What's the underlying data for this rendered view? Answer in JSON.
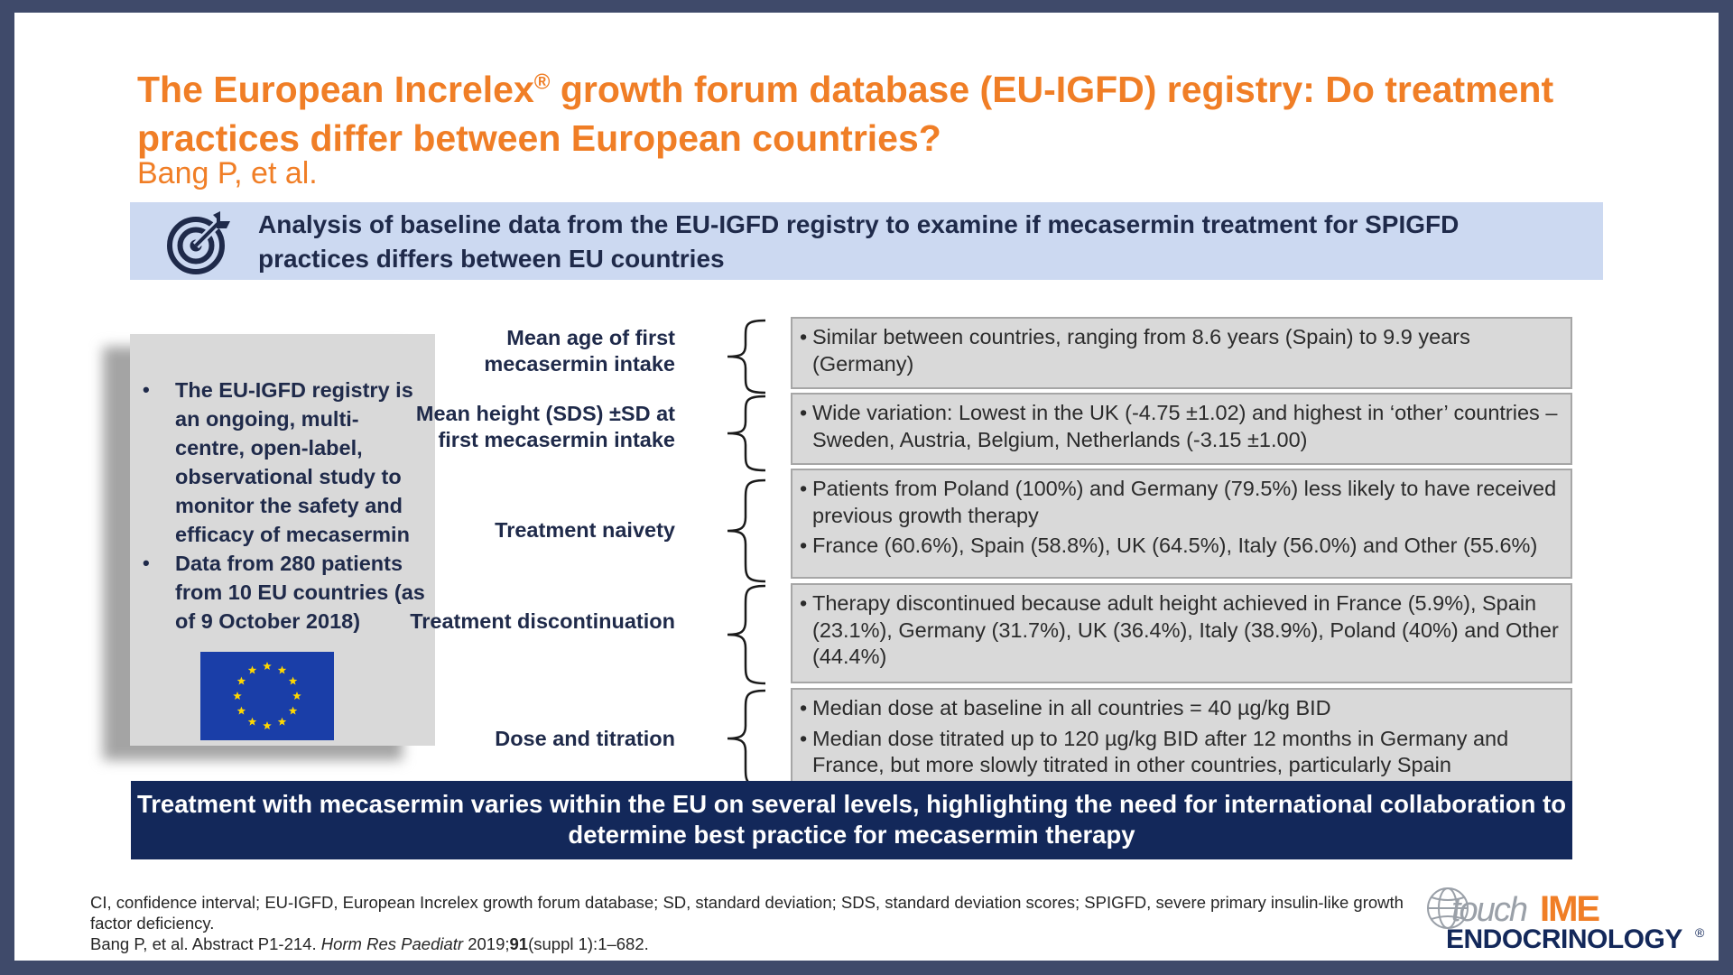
{
  "title": {
    "line_part1": "The European Increlex",
    "registered": "®",
    "line_part2": " growth forum database (EU-IGFD) registry: Do treatment practices differ between European countries?"
  },
  "authors": "Bang P, et al.",
  "aim": {
    "icon": "target-icon",
    "text": "Analysis of baseline data from the EU-IGFD registry to examine if mecasermin treatment for SPIGFD practices differs between EU countries"
  },
  "left_box": {
    "bullets": [
      "The EU-IGFD registry is an ongoing, multi-centre, open-label, observational study to monitor the safety and efficacy of mecasermin",
      "Data from 280 patients from 10 EU countries (as of 9 October 2018)"
    ],
    "flag": "eu-flag-icon",
    "bullet_char": "•"
  },
  "rows": [
    {
      "label": "Mean age of first mecasermin intake",
      "bullets": [
        "Similar between countries, ranging from 8.6 years (Spain) to 9.9 years (Germany)"
      ]
    },
    {
      "label": "Mean height (SDS) ±SD at first mecasermin intake",
      "bullets": [
        "Wide variation: Lowest in the UK (-4.75 ±1.02) and highest in ‘other’ countries – Sweden, Austria, Belgium, Netherlands (-3.15 ±1.00)"
      ]
    },
    {
      "label": "Treatment naivety",
      "bullets": [
        "Patients from Poland (100%) and Germany (79.5%) less likely to have received previous growth therapy",
        "France (60.6%), Spain (58.8%), UK (64.5%), Italy (56.0%) and Other (55.6%)"
      ]
    },
    {
      "label": "Treatment discontinuation",
      "bullets": [
        "Therapy discontinued because adult height achieved in France (5.9%), Spain (23.1%), Germany (31.7%), UK (36.4%), Italy (38.9%), Poland (40%) and Other (44.4%)"
      ]
    },
    {
      "label": "Dose and titration",
      "bullets": [
        "Median dose at baseline in all countries = 40 µg/kg BID",
        "Median dose titrated up to 120 µg/kg BID after 12 months in Germany and France, but more slowly titrated in other countries, particularly Spain"
      ]
    }
  ],
  "conclusion": "Treatment with mecasermin varies within the EU on several levels, highlighting the need for international collaboration to determine best practice for mecasermin therapy",
  "footnote": {
    "abbreviations": "CI, confidence interval; EU-IGFD, European Increlex growth forum database; SD, standard deviation; SDS, standard deviation scores; SPIGFD, severe primary insulin-like growth factor deficiency.",
    "ref_prefix": "Bang P, et al. Abstract P1-214. ",
    "ref_journal": "Horm Res Paediatr",
    "ref_year": " 2019;",
    "ref_volume": "91",
    "ref_pages": "(suppl 1):1–682."
  },
  "logo": {
    "touch": "touch",
    "ime": "IME",
    "specialty": "ENDOCRINOLOGY",
    "registered": "®"
  },
  "colors": {
    "title_orange": "#f07e26",
    "aim_band": "#ccd9f1",
    "navy": "#13285a",
    "box_grey": "#d9d9d9",
    "border": "#3f4a6a"
  }
}
